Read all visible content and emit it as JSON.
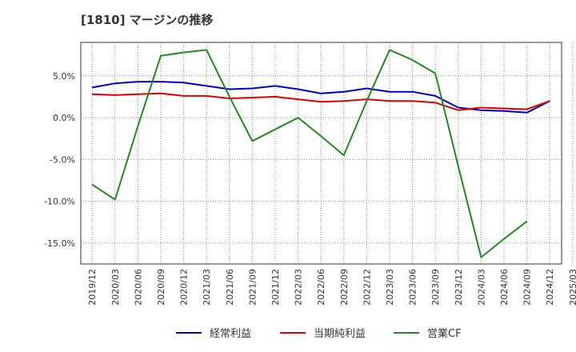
{
  "chart_data": {
    "type": "line",
    "title": "[1810]  マージンの推移",
    "xlabel": "",
    "ylabel": "",
    "x": [
      "2019/12",
      "2020/03",
      "2020/06",
      "2020/09",
      "2020/12",
      "2021/03",
      "2021/06",
      "2021/09",
      "2021/12",
      "2022/03",
      "2022/06",
      "2022/09",
      "2022/12",
      "2023/03",
      "2023/06",
      "2023/09",
      "2023/12",
      "2024/03",
      "2024/06",
      "2024/09",
      "2024/12",
      "2025/03"
    ],
    "ylim": [
      -17.5,
      9
    ],
    "y_ticks": [
      5,
      0,
      -5,
      -10,
      -15
    ],
    "y_tick_labels": [
      "5.0%",
      "0.0%",
      "-5.0%",
      "-10.0%",
      "-15.0%"
    ],
    "grid": true,
    "legend_position": "bottom",
    "series": [
      {
        "name": "経常利益",
        "color": "#0000cc",
        "values": [
          3.6,
          4.1,
          4.3,
          4.3,
          4.2,
          3.8,
          3.4,
          3.5,
          3.8,
          3.4,
          2.9,
          3.1,
          3.5,
          3.1,
          3.1,
          2.6,
          1.2,
          0.9,
          0.8,
          0.6,
          2.0,
          null
        ]
      },
      {
        "name": "当期純利益",
        "color": "#dd0000",
        "values": [
          2.8,
          2.7,
          2.8,
          2.9,
          2.6,
          2.6,
          2.3,
          2.4,
          2.5,
          2.2,
          1.9,
          2.0,
          2.2,
          2.0,
          2.0,
          1.8,
          0.9,
          1.2,
          1.1,
          1.0,
          2.0,
          null
        ]
      },
      {
        "name": "営業CF",
        "color": "#228822",
        "values": [
          -8.0,
          -9.8,
          -1.0,
          7.4,
          7.8,
          8.1,
          2.5,
          -2.8,
          -1.4,
          0.0,
          -2.2,
          -4.5,
          2.0,
          8.1,
          6.9,
          5.3,
          -5.8,
          -16.7,
          -14.5,
          -12.4,
          null,
          null
        ]
      }
    ]
  }
}
